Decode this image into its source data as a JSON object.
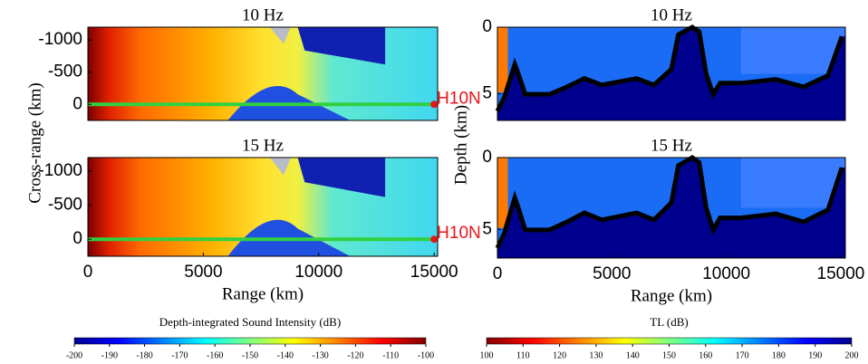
{
  "chart_data": [
    {
      "type": "heatmap",
      "title": "10 Hz",
      "ylabel": "Cross-range (km)",
      "xlim": [
        0,
        15150
      ],
      "ylim": [
        250,
        -1200
      ],
      "yticks": [
        -1000,
        -500,
        0
      ],
      "annotation": {
        "text": "H10N",
        "x": 15000,
        "y": 0
      }
    },
    {
      "type": "section",
      "title": "10 Hz",
      "ylabel": "Depth (km)",
      "xlim": [
        0,
        15200
      ],
      "ylim": [
        7,
        0
      ],
      "yticks": [
        0,
        5
      ]
    },
    {
      "type": "heatmap",
      "title": "15 Hz",
      "xlabel": "Range (km)",
      "xlim": [
        0,
        15150
      ],
      "xticks": [
        0,
        5000,
        10000,
        15000
      ],
      "ylim": [
        250,
        -1200
      ],
      "yticks": [
        -1000,
        -500,
        0
      ],
      "annotation": {
        "text": "H10N",
        "x": 15000,
        "y": 0
      }
    },
    {
      "type": "section",
      "title": "15 Hz",
      "xlabel": "Range (km)",
      "xlim": [
        0,
        15200
      ],
      "xticks": [
        0,
        5000,
        10000,
        15000
      ],
      "ylim": [
        7,
        0
      ],
      "yticks": [
        0,
        5
      ]
    },
    {
      "type": "colorbar",
      "label": "Depth-integrated Sound Intensity (dB)",
      "lim": [
        -200,
        -100
      ],
      "ticks": [
        -200,
        -190,
        -180,
        -170,
        -160,
        -150,
        -140,
        -130,
        -120,
        -110,
        -100
      ],
      "colormap": "jet"
    },
    {
      "type": "colorbar",
      "label": "TL (dB)",
      "lim": [
        100,
        200
      ],
      "ticks": [
        100,
        110,
        120,
        130,
        140,
        150,
        160,
        170,
        180,
        190,
        200
      ],
      "colormap": "jet_r"
    }
  ]
}
